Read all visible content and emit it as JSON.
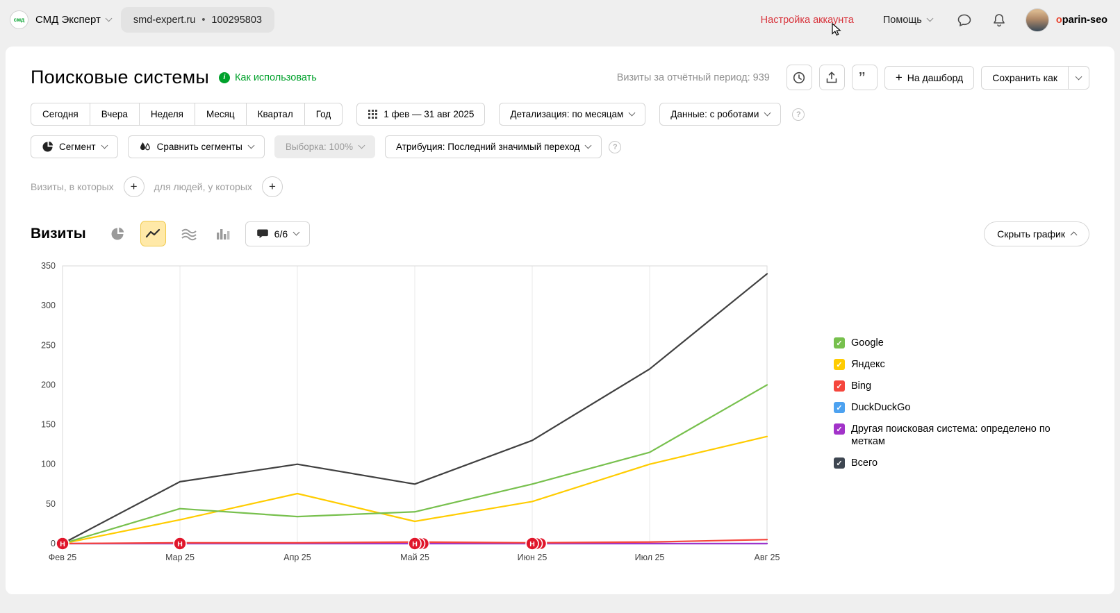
{
  "topbar": {
    "logo_text": "смд",
    "counter_name": "СМД Эксперт",
    "site_domain": "smd-expert.ru",
    "counter_id": "100295803",
    "account_settings_label": "Настройка аккаунта",
    "help_label": "Помощь",
    "username_first": "o",
    "username_rest": "parin-seo"
  },
  "header": {
    "title": "Поисковые системы",
    "how_to_use_label": "Как использовать",
    "visits_period_label": "Визиты за отчётный период: 939",
    "dashboard_button_label": "На дашборд",
    "save_as_label": "Сохранить как"
  },
  "toolbar": {
    "periods": [
      "Сегодня",
      "Вчера",
      "Неделя",
      "Месяц",
      "Квартал",
      "Год"
    ],
    "date_range": "1 фев — 31 авг 2025",
    "detalization_label": "Детализация: по месяцам",
    "data_label": "Данные: с роботами",
    "segment_label": "Сегмент",
    "compare_segments_label": "Сравнить сегменты",
    "sampling_label": "Выборка: 100%",
    "attribution_label": "Атрибуция: Последний значимый переход"
  },
  "filters": {
    "visits_condition_label": "Визиты, в которых",
    "people_condition_label": "для людей, у которых"
  },
  "chart_section": {
    "title": "Визиты",
    "labels_counter": "6/6",
    "hide_chart_label": "Скрыть график"
  },
  "icons": {
    "plus": "+",
    "question": "?",
    "info": "i",
    "dot": "•"
  },
  "colors": {
    "accent_red": "#d8343c",
    "link_green": "#00a12b",
    "annotation_red": "#e0162b",
    "selected_icon_bg": "#ffe9a8"
  },
  "legend": {
    "items": [
      {
        "label": "Google",
        "color": "#77c04d",
        "checked": true
      },
      {
        "label": "Яндекс",
        "color": "#ffcc00",
        "checked": true
      },
      {
        "label": "Bing",
        "color": "#f5463d",
        "checked": true
      },
      {
        "label": "DuckDuckGo",
        "color": "#4da2f0",
        "checked": true
      },
      {
        "label": "Другая поисковая система: определено по меткам",
        "color": "#a233c9",
        "checked": true
      },
      {
        "label": "Всего",
        "color": "#3e4651",
        "checked": true
      }
    ]
  },
  "chart_data": {
    "type": "line",
    "title": "Визиты",
    "x": [
      "Фев 25",
      "Мар 25",
      "Апр 25",
      "Май 25",
      "Июн 25",
      "Июл 25",
      "Авг 25"
    ],
    "ylim": [
      0,
      350
    ],
    "yticks": [
      0,
      50,
      100,
      150,
      200,
      250,
      300,
      350
    ],
    "grid": "vertical",
    "legend_position": "right",
    "annotation_glyph": "Н",
    "series": [
      {
        "name": "DuckDuckGo",
        "color": "#4da2f0",
        "values": [
          0,
          0,
          0,
          0,
          0,
          0,
          0
        ]
      },
      {
        "name": "Другая поисковая система: определено по меткам",
        "color": "#a233c9",
        "values": [
          0,
          0,
          0,
          0,
          0,
          0,
          0
        ]
      },
      {
        "name": "Bing",
        "color": "#f5463d",
        "values": [
          0,
          1,
          1,
          2,
          1,
          2,
          5
        ]
      },
      {
        "name": "Яндекс",
        "color": "#ffcc00",
        "values": [
          0,
          30,
          63,
          28,
          53,
          100,
          135
        ]
      },
      {
        "name": "Google",
        "color": "#77c04d",
        "values": [
          0,
          44,
          34,
          40,
          75,
          115,
          200
        ]
      },
      {
        "name": "Всего",
        "color": "#404040",
        "values": [
          0,
          78,
          100,
          75,
          130,
          220,
          340
        ]
      }
    ],
    "annotations": [
      {
        "x_index": 0,
        "count": 1
      },
      {
        "x_index": 1,
        "count": 1
      },
      {
        "x_index": 3,
        "count": 3
      },
      {
        "x_index": 4,
        "count": 3
      }
    ]
  }
}
